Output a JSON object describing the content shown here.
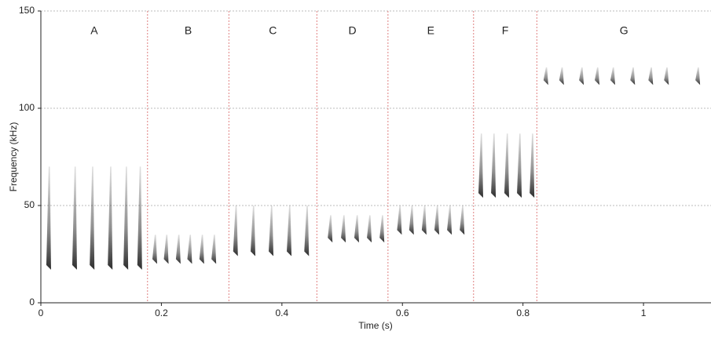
{
  "chart_data": {
    "type": "spectrogram",
    "x_label": "Time (s)",
    "y_label": "Frequency (kHz)",
    "xlim": [
      0,
      1.112
    ],
    "xticks": [
      0,
      0.2,
      0.4,
      0.6,
      0.8,
      1
    ],
    "ylim": [
      0,
      150
    ],
    "yticks": [
      0,
      50,
      100,
      150
    ],
    "grid": true,
    "color": "#333333",
    "divider_color": "#e08080",
    "sections": [
      {
        "label": "A",
        "start": 0,
        "end": 0.177,
        "band": [
          17,
          70
        ],
        "pulses": [
          0.013,
          0.056,
          0.085,
          0.115,
          0.141,
          0.164
        ]
      },
      {
        "label": "B",
        "start": 0.177,
        "end": 0.312,
        "band": [
          20,
          35
        ],
        "pulses": [
          0.189,
          0.208,
          0.228,
          0.247,
          0.267,
          0.287
        ]
      },
      {
        "label": "C",
        "start": 0.312,
        "end": 0.458,
        "band": [
          24,
          50
        ],
        "pulses": [
          0.323,
          0.352,
          0.382,
          0.412,
          0.441
        ]
      },
      {
        "label": "D",
        "start": 0.458,
        "end": 0.576,
        "band": [
          31,
          45
        ],
        "pulses": [
          0.48,
          0.502,
          0.524,
          0.545,
          0.566
        ]
      },
      {
        "label": "E",
        "start": 0.576,
        "end": 0.718,
        "band": [
          35,
          50
        ],
        "pulses": [
          0.595,
          0.615,
          0.636,
          0.657,
          0.678,
          0.699
        ]
      },
      {
        "label": "F",
        "start": 0.718,
        "end": 0.823,
        "band": [
          54,
          87
        ],
        "pulses": [
          0.73,
          0.751,
          0.773,
          0.794,
          0.815
        ]
      },
      {
        "label": "G",
        "start": 0.823,
        "end": 1.112,
        "band": [
          112,
          121
        ],
        "pulses": [
          0.838,
          0.864,
          0.897,
          0.923,
          0.949,
          0.982,
          1.012,
          1.038,
          1.09
        ]
      }
    ]
  }
}
